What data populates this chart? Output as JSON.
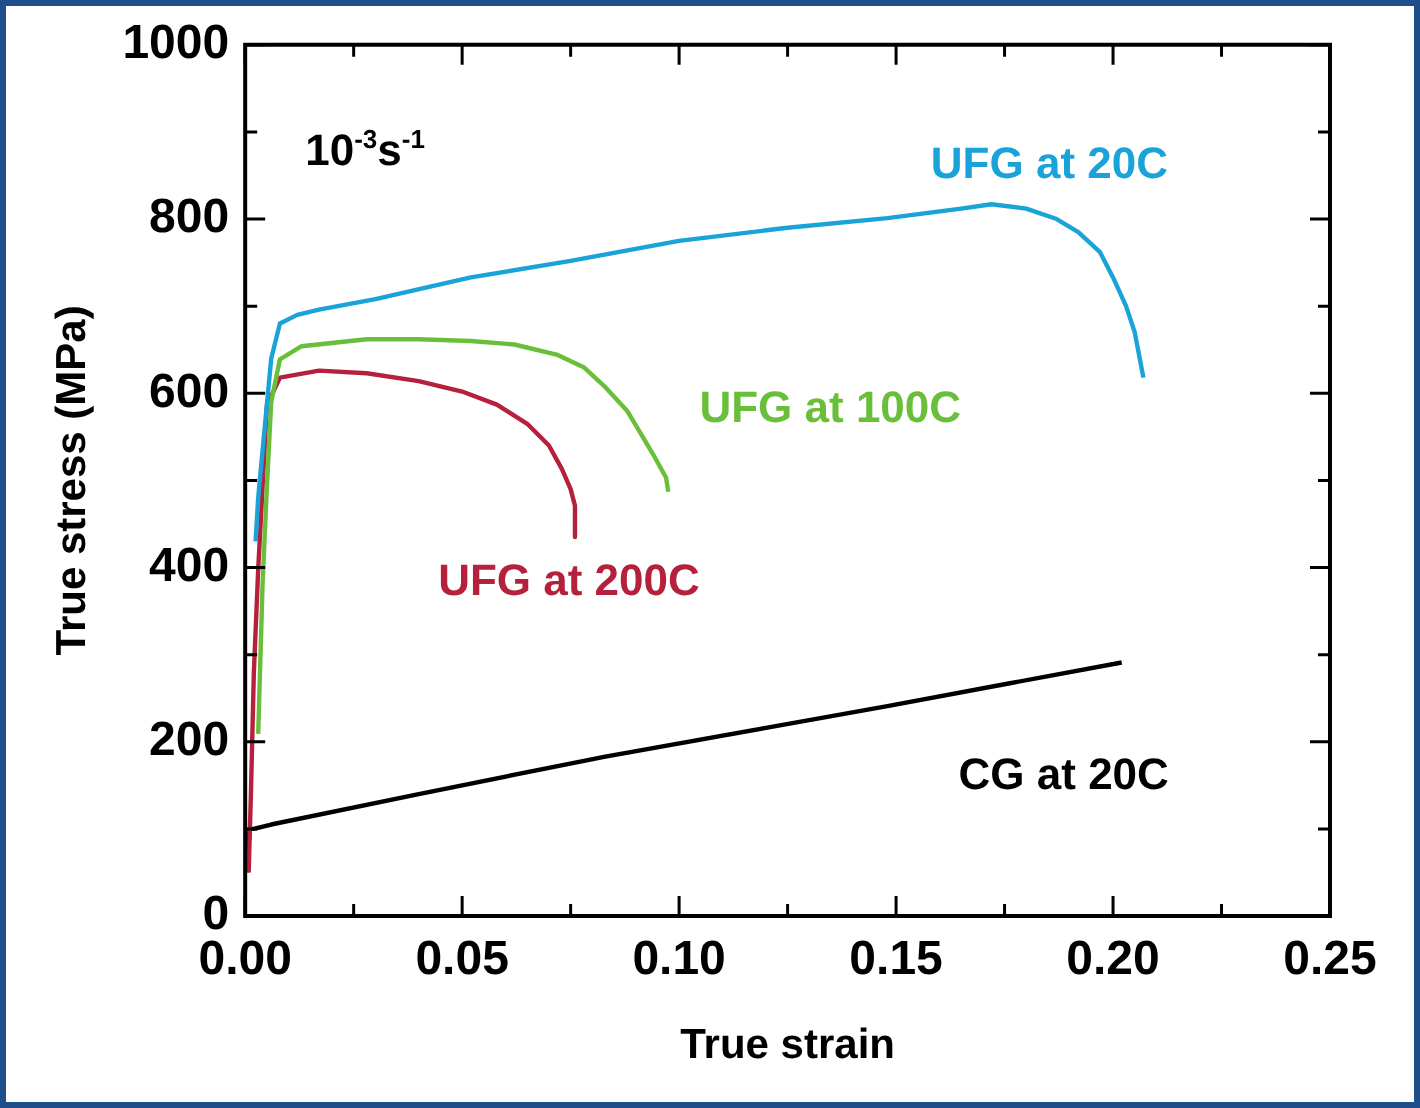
{
  "chart_data": {
    "type": "line",
    "xlabel": "True strain",
    "ylabel": "True stress (MPa)",
    "annotations": [
      "10$^{-3}$s$^{-1}$"
    ],
    "xlim": [
      0,
      0.25
    ],
    "ylim": [
      0,
      1000
    ],
    "xticks": [
      {
        "value": 0,
        "label": "0.00"
      },
      {
        "value": 0.025,
        "label": null
      },
      {
        "value": 0.05,
        "label": "0.05"
      },
      {
        "value": 0.075,
        "label": null
      },
      {
        "value": 0.1,
        "label": "0.10"
      },
      {
        "value": 0.125,
        "label": null
      },
      {
        "value": 0.15,
        "label": "0.15"
      },
      {
        "value": 0.175,
        "label": null
      },
      {
        "value": 0.2,
        "label": "0.20"
      },
      {
        "value": 0.225,
        "label": null
      },
      {
        "value": 0.25,
        "label": "0.25"
      }
    ],
    "yticks": [
      0,
      {
        "value": 100,
        "label": null
      },
      200,
      {
        "value": 300,
        "label": null
      },
      400,
      {
        "value": 500,
        "label": null
      },
      600,
      {
        "value": 700,
        "label": null
      },
      800,
      {
        "value": 900,
        "label": null
      },
      1000
    ],
    "grid": false,
    "legend": false,
    "marker": "none",
    "line_style": "solid",
    "series": [
      {
        "name": "UFG at 20C",
        "color": "#1aa3d9",
        "x": [
          0.0024,
          0.003,
          0.004,
          0.006,
          0.008,
          0.012,
          0.017,
          0.03,
          0.052,
          0.075,
          0.1,
          0.125,
          0.148,
          0.165,
          0.172,
          0.18,
          0.187,
          0.192,
          0.197,
          0.2,
          0.203,
          0.205,
          0.207
        ],
        "values": [
          430,
          480,
          534,
          640,
          680,
          690,
          696,
          708,
          733,
          752,
          775,
          790,
          801,
          812,
          817,
          812,
          800,
          785,
          762,
          733,
          700,
          670,
          618
        ]
      },
      {
        "name": "UFG at 100C",
        "color": "#6abf3a",
        "x": [
          0.003,
          0.004,
          0.005,
          0.006,
          0.008,
          0.013,
          0.028,
          0.04,
          0.052,
          0.062,
          0.072,
          0.078,
          0.083,
          0.088,
          0.091,
          0.094,
          0.097,
          0.0975
        ],
        "values": [
          209,
          380,
          492,
          590,
          639,
          654,
          662,
          662,
          660,
          656,
          644,
          630,
          607,
          580,
          555,
          530,
          503,
          487
        ]
      },
      {
        "name": "UFG at 200C",
        "color": "#b5213c",
        "x": [
          0.0008,
          0.0013,
          0.002,
          0.003,
          0.005,
          0.008,
          0.017,
          0.028,
          0.04,
          0.05,
          0.058,
          0.065,
          0.07,
          0.073,
          0.075,
          0.076,
          0.076
        ],
        "values": [
          50,
          136,
          280,
          398,
          586,
          618,
          626,
          623,
          614,
          602,
          587,
          565,
          540,
          513,
          490,
          471,
          435
        ]
      },
      {
        "name": "CG at 20C",
        "color": "#000000",
        "x": [
          0.0005,
          0.001,
          0.002,
          0.006,
          0.04,
          0.083,
          0.12,
          0.148,
          0.175,
          0.202
        ],
        "values": [
          50,
          100,
          100,
          105,
          140,
          183,
          216,
          241,
          266,
          291
        ]
      }
    ]
  }
}
